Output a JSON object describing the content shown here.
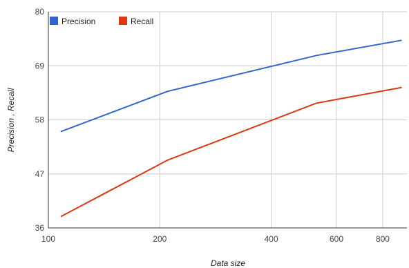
{
  "chart_data": {
    "type": "line",
    "xlabel": "Data size",
    "ylabel": "Precision , Recall",
    "x_scale": "log",
    "xlim": [
      100,
      930
    ],
    "ylim": [
      36,
      80
    ],
    "x_ticks": [
      100,
      200,
      400,
      600,
      800
    ],
    "x_tick_labels": [
      "100",
      "200",
      "400",
      "600",
      "800"
    ],
    "y_ticks": [
      36,
      47,
      58,
      69,
      80
    ],
    "y_tick_labels": [
      "36",
      "47",
      "58",
      "69",
      "80"
    ],
    "grid": true,
    "legend_position": "top-left",
    "series": [
      {
        "name": "Precision",
        "color": "#3366cc",
        "x": [
          108,
          210,
          530,
          900
        ],
        "y": [
          55.6,
          63.8,
          71.1,
          74.2
        ]
      },
      {
        "name": "Recall",
        "color": "#dc3912",
        "x": [
          108,
          210,
          530,
          900
        ],
        "y": [
          38.3,
          49.8,
          61.4,
          64.6
        ]
      }
    ]
  }
}
